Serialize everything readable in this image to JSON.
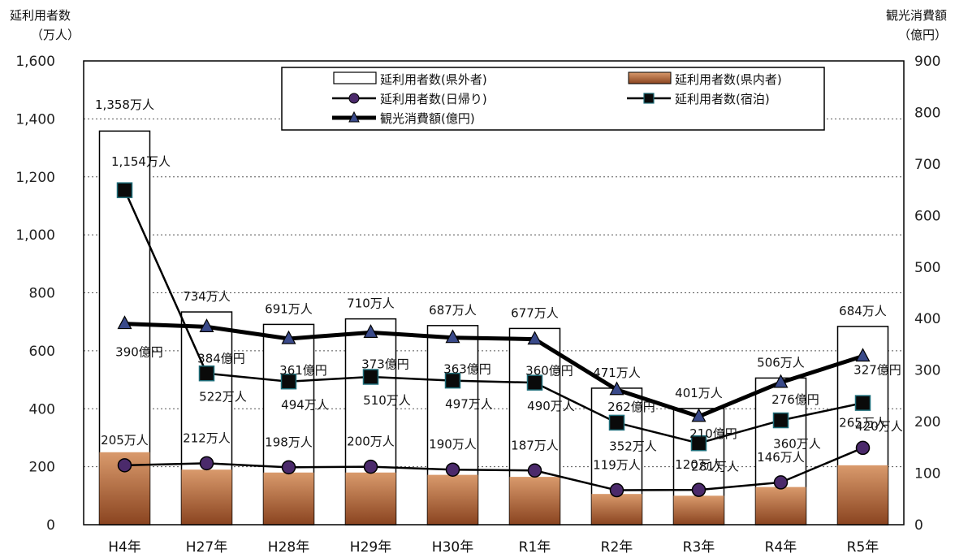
{
  "chart_data": {
    "type": "bar",
    "categories": [
      "H4年",
      "H27年",
      "H28年",
      "H29年",
      "H30年",
      "R1年",
      "R2年",
      "R3年",
      "R4年",
      "R5年"
    ],
    "left_axis": {
      "title_line1": "延利用者数",
      "title_line2": "（万人）",
      "range": [
        0,
        1600
      ],
      "ticks": [
        "0",
        "200",
        "400",
        "600",
        "800",
        "1,000",
        "1,200",
        "1,400",
        "1,600"
      ]
    },
    "right_axis": {
      "title_line1": "観光消費額",
      "title_line2": "（億円）",
      "range": [
        0,
        900
      ],
      "ticks": [
        "0",
        "100",
        "200",
        "300",
        "400",
        "500",
        "600",
        "700",
        "800",
        "900"
      ]
    },
    "series": [
      {
        "name": "延利用者数(県外者)",
        "kind": "bar-total",
        "axis": "left",
        "values": [
          1358,
          734,
          691,
          710,
          687,
          677,
          471,
          401,
          506,
          684
        ],
        "labels": [
          "1,358万人",
          "734万人",
          "691万人",
          "710万人",
          "687万人",
          "677万人",
          "471万人",
          "401万人",
          "506万人",
          "684万人"
        ]
      },
      {
        "name": "延利用者数(県内者)",
        "kind": "bar-stack",
        "axis": "left",
        "values": [
          250,
          190,
          180,
          180,
          172,
          165,
          106,
          100,
          130,
          205
        ],
        "color": "#b5673a"
      },
      {
        "name": "延利用者数(日帰り)",
        "kind": "line",
        "axis": "left",
        "values": [
          205,
          212,
          198,
          200,
          190,
          187,
          119,
          120,
          146,
          265
        ],
        "labels": [
          "205万人",
          "212万人",
          "198万人",
          "200万人",
          "190万人",
          "187万人",
          "119万人",
          "120万人",
          "146万人",
          "265万人"
        ],
        "marker_color": "#4b2a6b"
      },
      {
        "name": "延利用者数(宿泊)",
        "kind": "line",
        "axis": "left",
        "values": [
          1154,
          522,
          494,
          510,
          497,
          490,
          352,
          281,
          360,
          420
        ],
        "labels": [
          "1,154万人",
          "522万人",
          "494万人",
          "510万人",
          "497万人",
          "490万人",
          "352万人",
          "281万人",
          "360万人",
          "420万人"
        ],
        "marker_color": "#1f6e7a"
      },
      {
        "name": "観光消費額(億円)",
        "kind": "line",
        "axis": "right",
        "values": [
          390,
          384,
          361,
          373,
          363,
          360,
          262,
          210,
          276,
          327
        ],
        "labels": [
          "390億円",
          "384億円",
          "361億円",
          "373億円",
          "363億円",
          "360億円",
          "262億円",
          "210億円",
          "276億円",
          "327億円"
        ],
        "marker_color": "#3a4a8a"
      }
    ],
    "grid": "horizontal-dotted",
    "legend_placement": "top-center"
  }
}
